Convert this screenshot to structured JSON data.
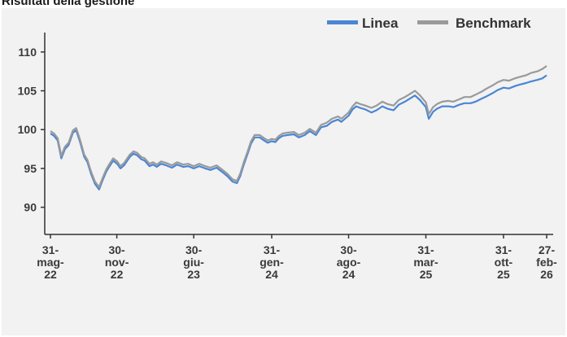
{
  "header": {
    "title": "Risultati della gestione"
  },
  "colors": {
    "linea": "#4a86d4",
    "benchmark": "#9a9a9a",
    "axis": "#333333",
    "panel": "#f2f2f2"
  },
  "chart_data": {
    "type": "line",
    "title": "",
    "xlabel": "",
    "ylabel": "",
    "ylim": [
      86.5,
      112.5
    ],
    "yticks": [
      90,
      95,
      100,
      105,
      110
    ],
    "grid": false,
    "legend_position": "top-right",
    "x_range": [
      "2022-05-31",
      "2026-02-27"
    ],
    "xticks": [
      {
        "date": "2022-05-31",
        "label": [
          "31-",
          "mag-",
          "22"
        ]
      },
      {
        "date": "2022-11-30",
        "label": [
          "30-",
          "nov-",
          "22"
        ]
      },
      {
        "date": "2023-06-30",
        "label": [
          "30-",
          "giu-",
          "23"
        ]
      },
      {
        "date": "2024-01-31",
        "label": [
          "31-",
          "gen-",
          "24"
        ]
      },
      {
        "date": "2024-08-30",
        "label": [
          "30-",
          "ago-",
          "24"
        ]
      },
      {
        "date": "2025-03-31",
        "label": [
          "31-",
          "mar-",
          "25"
        ]
      },
      {
        "date": "2025-10-31",
        "label": [
          "31-",
          "ott-",
          "25"
        ]
      },
      {
        "date": "2026-02-27",
        "label": [
          "27-",
          "feb-",
          "26"
        ]
      }
    ],
    "series": [
      {
        "name": "Linea",
        "color": "#4a86d4",
        "points": [
          [
            "2022-05-31",
            99.5
          ],
          [
            "2022-06-10",
            99.2
          ],
          [
            "2022-06-20",
            98.6
          ],
          [
            "2022-06-30",
            96.3
          ],
          [
            "2022-07-10",
            97.5
          ],
          [
            "2022-07-20",
            98.0
          ],
          [
            "2022-08-01",
            99.6
          ],
          [
            "2022-08-10",
            99.9
          ],
          [
            "2022-08-20",
            98.5
          ],
          [
            "2022-09-01",
            96.5
          ],
          [
            "2022-09-10",
            95.8
          ],
          [
            "2022-09-20",
            94.3
          ],
          [
            "2022-10-01",
            93.0
          ],
          [
            "2022-10-12",
            92.3
          ],
          [
            "2022-10-22",
            93.5
          ],
          [
            "2022-11-01",
            94.6
          ],
          [
            "2022-11-10",
            95.3
          ],
          [
            "2022-11-20",
            96.0
          ],
          [
            "2022-12-01",
            95.6
          ],
          [
            "2022-12-10",
            95.0
          ],
          [
            "2022-12-20",
            95.4
          ],
          [
            "2023-01-05",
            96.5
          ],
          [
            "2023-01-15",
            96.9
          ],
          [
            "2023-01-25",
            96.7
          ],
          [
            "2023-02-05",
            96.2
          ],
          [
            "2023-02-15",
            96.0
          ],
          [
            "2023-02-28",
            95.3
          ],
          [
            "2023-03-10",
            95.5
          ],
          [
            "2023-03-20",
            95.2
          ],
          [
            "2023-04-01",
            95.6
          ],
          [
            "2023-04-15",
            95.4
          ],
          [
            "2023-05-01",
            95.1
          ],
          [
            "2023-05-15",
            95.5
          ],
          [
            "2023-06-01",
            95.2
          ],
          [
            "2023-06-15",
            95.3
          ],
          [
            "2023-06-30",
            95.0
          ],
          [
            "2023-07-15",
            95.3
          ],
          [
            "2023-08-01",
            95.0
          ],
          [
            "2023-08-15",
            94.8
          ],
          [
            "2023-09-01",
            95.1
          ],
          [
            "2023-09-15",
            94.6
          ],
          [
            "2023-10-01",
            94.0
          ],
          [
            "2023-10-15",
            93.3
          ],
          [
            "2023-10-27",
            93.1
          ],
          [
            "2023-11-05",
            94.0
          ],
          [
            "2023-11-15",
            95.5
          ],
          [
            "2023-11-25",
            96.8
          ],
          [
            "2023-12-05",
            98.2
          ],
          [
            "2023-12-15",
            99.0
          ],
          [
            "2023-12-29",
            99.0
          ],
          [
            "2024-01-10",
            98.6
          ],
          [
            "2024-01-20",
            98.3
          ],
          [
            "2024-01-31",
            98.5
          ],
          [
            "2024-02-10",
            98.4
          ],
          [
            "2024-02-20",
            98.9
          ],
          [
            "2024-03-01",
            99.2
          ],
          [
            "2024-03-15",
            99.3
          ],
          [
            "2024-04-01",
            99.4
          ],
          [
            "2024-04-15",
            99.0
          ],
          [
            "2024-05-01",
            99.3
          ],
          [
            "2024-05-15",
            99.8
          ],
          [
            "2024-06-01",
            99.3
          ],
          [
            "2024-06-15",
            100.3
          ],
          [
            "2024-07-01",
            100.5
          ],
          [
            "2024-07-15",
            101.0
          ],
          [
            "2024-08-01",
            101.3
          ],
          [
            "2024-08-10",
            101.0
          ],
          [
            "2024-08-30",
            101.8
          ],
          [
            "2024-09-10",
            102.6
          ],
          [
            "2024-09-20",
            103.0
          ],
          [
            "2024-10-01",
            102.8
          ],
          [
            "2024-10-15",
            102.6
          ],
          [
            "2024-11-01",
            102.2
          ],
          [
            "2024-11-15",
            102.5
          ],
          [
            "2024-12-01",
            103.0
          ],
          [
            "2024-12-15",
            102.7
          ],
          [
            "2025-01-01",
            102.5
          ],
          [
            "2025-01-15",
            103.2
          ],
          [
            "2025-02-01",
            103.6
          ],
          [
            "2025-02-15",
            104.0
          ],
          [
            "2025-03-01",
            104.4
          ],
          [
            "2025-03-15",
            103.8
          ],
          [
            "2025-03-31",
            102.9
          ],
          [
            "2025-04-08",
            101.4
          ],
          [
            "2025-04-20",
            102.3
          ],
          [
            "2025-05-01",
            102.7
          ],
          [
            "2025-05-15",
            103.0
          ],
          [
            "2025-06-01",
            103.0
          ],
          [
            "2025-06-15",
            102.9
          ],
          [
            "2025-07-01",
            103.2
          ],
          [
            "2025-07-15",
            103.4
          ],
          [
            "2025-08-01",
            103.4
          ],
          [
            "2025-08-15",
            103.6
          ],
          [
            "2025-09-01",
            104.0
          ],
          [
            "2025-09-15",
            104.3
          ],
          [
            "2025-10-01",
            104.7
          ],
          [
            "2025-10-15",
            105.1
          ],
          [
            "2025-10-31",
            105.4
          ],
          [
            "2025-11-15",
            105.3
          ],
          [
            "2025-12-01",
            105.6
          ],
          [
            "2025-12-15",
            105.8
          ],
          [
            "2026-01-01",
            106.0
          ],
          [
            "2026-01-15",
            106.2
          ],
          [
            "2026-02-01",
            106.4
          ],
          [
            "2026-02-15",
            106.6
          ],
          [
            "2026-02-27",
            107.0
          ]
        ]
      },
      {
        "name": "Benchmark",
        "color": "#9a9a9a",
        "points": [
          [
            "2022-05-31",
            99.8
          ],
          [
            "2022-06-10",
            99.5
          ],
          [
            "2022-06-20",
            98.9
          ],
          [
            "2022-06-30",
            96.6
          ],
          [
            "2022-07-10",
            97.8
          ],
          [
            "2022-07-20",
            98.3
          ],
          [
            "2022-08-01",
            99.9
          ],
          [
            "2022-08-10",
            100.2
          ],
          [
            "2022-08-20",
            98.8
          ],
          [
            "2022-09-01",
            96.8
          ],
          [
            "2022-09-10",
            96.1
          ],
          [
            "2022-09-20",
            94.6
          ],
          [
            "2022-10-01",
            93.3
          ],
          [
            "2022-10-12",
            92.6
          ],
          [
            "2022-10-22",
            93.8
          ],
          [
            "2022-11-01",
            94.9
          ],
          [
            "2022-11-10",
            95.6
          ],
          [
            "2022-11-20",
            96.3
          ],
          [
            "2022-12-01",
            95.9
          ],
          [
            "2022-12-10",
            95.3
          ],
          [
            "2022-12-20",
            95.7
          ],
          [
            "2023-01-05",
            96.8
          ],
          [
            "2023-01-15",
            97.2
          ],
          [
            "2023-01-25",
            97.0
          ],
          [
            "2023-02-05",
            96.5
          ],
          [
            "2023-02-15",
            96.3
          ],
          [
            "2023-02-28",
            95.6
          ],
          [
            "2023-03-10",
            95.8
          ],
          [
            "2023-03-20",
            95.5
          ],
          [
            "2023-04-01",
            95.9
          ],
          [
            "2023-04-15",
            95.7
          ],
          [
            "2023-05-01",
            95.4
          ],
          [
            "2023-05-15",
            95.8
          ],
          [
            "2023-06-01",
            95.5
          ],
          [
            "2023-06-15",
            95.6
          ],
          [
            "2023-06-30",
            95.3
          ],
          [
            "2023-07-15",
            95.6
          ],
          [
            "2023-08-01",
            95.3
          ],
          [
            "2023-08-15",
            95.1
          ],
          [
            "2023-09-01",
            95.4
          ],
          [
            "2023-09-15",
            94.9
          ],
          [
            "2023-10-01",
            94.3
          ],
          [
            "2023-10-15",
            93.6
          ],
          [
            "2023-10-27",
            93.4
          ],
          [
            "2023-11-05",
            94.3
          ],
          [
            "2023-11-15",
            95.8
          ],
          [
            "2023-11-25",
            97.1
          ],
          [
            "2023-12-05",
            98.5
          ],
          [
            "2023-12-15",
            99.3
          ],
          [
            "2023-12-29",
            99.3
          ],
          [
            "2024-01-10",
            98.9
          ],
          [
            "2024-01-20",
            98.6
          ],
          [
            "2024-01-31",
            98.8
          ],
          [
            "2024-02-10",
            98.7
          ],
          [
            "2024-02-20",
            99.2
          ],
          [
            "2024-03-01",
            99.5
          ],
          [
            "2024-03-15",
            99.6
          ],
          [
            "2024-04-01",
            99.7
          ],
          [
            "2024-04-15",
            99.3
          ],
          [
            "2024-05-01",
            99.6
          ],
          [
            "2024-05-15",
            100.1
          ],
          [
            "2024-06-01",
            99.6
          ],
          [
            "2024-06-15",
            100.6
          ],
          [
            "2024-07-01",
            100.9
          ],
          [
            "2024-07-15",
            101.4
          ],
          [
            "2024-08-01",
            101.7
          ],
          [
            "2024-08-10",
            101.4
          ],
          [
            "2024-08-30",
            102.2
          ],
          [
            "2024-09-10",
            103.0
          ],
          [
            "2024-09-20",
            103.5
          ],
          [
            "2024-10-01",
            103.3
          ],
          [
            "2024-10-15",
            103.1
          ],
          [
            "2024-11-01",
            102.8
          ],
          [
            "2024-11-15",
            103.1
          ],
          [
            "2024-12-01",
            103.6
          ],
          [
            "2024-12-15",
            103.3
          ],
          [
            "2025-01-01",
            103.1
          ],
          [
            "2025-01-15",
            103.8
          ],
          [
            "2025-02-01",
            104.2
          ],
          [
            "2025-02-15",
            104.6
          ],
          [
            "2025-03-01",
            105.0
          ],
          [
            "2025-03-15",
            104.4
          ],
          [
            "2025-03-31",
            103.5
          ],
          [
            "2025-04-08",
            102.0
          ],
          [
            "2025-04-20",
            102.9
          ],
          [
            "2025-05-01",
            103.3
          ],
          [
            "2025-05-15",
            103.6
          ],
          [
            "2025-06-01",
            103.7
          ],
          [
            "2025-06-15",
            103.6
          ],
          [
            "2025-07-01",
            103.9
          ],
          [
            "2025-07-15",
            104.2
          ],
          [
            "2025-08-01",
            104.2
          ],
          [
            "2025-08-15",
            104.5
          ],
          [
            "2025-09-01",
            104.9
          ],
          [
            "2025-09-15",
            105.3
          ],
          [
            "2025-10-01",
            105.7
          ],
          [
            "2025-10-15",
            106.1
          ],
          [
            "2025-10-31",
            106.4
          ],
          [
            "2025-11-15",
            106.3
          ],
          [
            "2025-12-01",
            106.6
          ],
          [
            "2025-12-15",
            106.8
          ],
          [
            "2026-01-01",
            107.0
          ],
          [
            "2026-01-15",
            107.3
          ],
          [
            "2026-02-01",
            107.5
          ],
          [
            "2026-02-15",
            107.8
          ],
          [
            "2026-02-27",
            108.2
          ]
        ]
      }
    ]
  }
}
